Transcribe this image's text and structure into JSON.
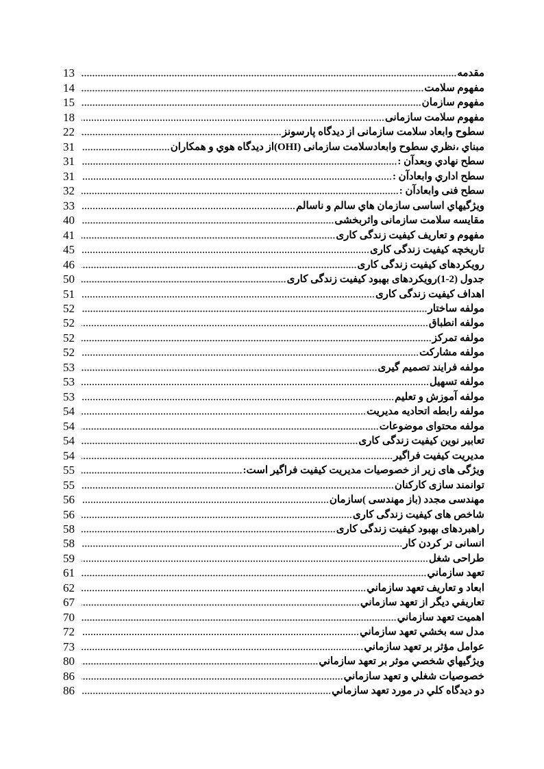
{
  "toc": {
    "entries": [
      {
        "title": "مقدمه",
        "page": "13"
      },
      {
        "title": "مفهوم سلامت",
        "page": "14"
      },
      {
        "title": "مفهوم سازمان",
        "page": "15"
      },
      {
        "title": "مفهوم سلامت سازمانی",
        "page": "18"
      },
      {
        "title": "سطوح وابعاد سلامت سازمانی از دیدگاه پارسونز",
        "page": "22"
      },
      {
        "title": "مبناي ،نظري سطوح وابعادسلامت سازمانی (OHI)از ديدگاه هوي و همكاران",
        "page": "31"
      },
      {
        "title": "سطح نهادي وبعدآن :",
        "page": "31"
      },
      {
        "title": "سطح اداري وابعادآن :",
        "page": "31"
      },
      {
        "title": "سطح فنی وابعادآن :",
        "page": "32"
      },
      {
        "title": "ويژگيهاي اساسی سازمان هاي سالم و ناسالم",
        "page": "33"
      },
      {
        "title": "مقایسه سلامت سازمانی واثربخشی",
        "page": "40"
      },
      {
        "title": "مفهوم و تعاریف کیفیت زندگی کاری",
        "page": "41"
      },
      {
        "title": "تاریخچه کیفیت زندگی کاری",
        "page": "45"
      },
      {
        "title": "رویکردهای کیفیت زندگی کاری",
        "page": "46"
      },
      {
        "title": "جدول (2-1)رویکردهای بهبود کیفیت زندگی کاری",
        "page": "50"
      },
      {
        "title": "اهداف کیفیت زندگی کاری",
        "page": "51"
      },
      {
        "title": "مولفه ساختار",
        "page": "52"
      },
      {
        "title": "مولفه انطباق",
        "page": "52"
      },
      {
        "title": "مولفه تمرکز",
        "page": "52"
      },
      {
        "title": "مولفه مشارکت",
        "page": "52"
      },
      {
        "title": "مولفه فرایند تصمیم گیری",
        "page": "53"
      },
      {
        "title": "مولفه تسهیل",
        "page": "53"
      },
      {
        "title": "مولفه آموزش و تعلیم",
        "page": "53"
      },
      {
        "title": "مولفه رابطه اتحادیه مدیریت",
        "page": "54"
      },
      {
        "title": "مولفه محتوای موضوعات",
        "page": "54"
      },
      {
        "title": "تعابیر نوین کیفیت زندگی کاری",
        "page": "54"
      },
      {
        "title": "مدیریت کیفیت فراگیر",
        "page": "54"
      },
      {
        "title": "ویژگی های زیر از خصوصیات مدیریت کیفیت فراگیر است:",
        "page": "55"
      },
      {
        "title": "توانمند سازی کارکنان",
        "page": "55"
      },
      {
        "title": "مهندسی مجدد (باز مهندسی )سازمان",
        "page": "56"
      },
      {
        "title": "شاخص های کیفیت زندگی کاری",
        "page": "56"
      },
      {
        "title": "راهبردهای بهبود کیفیت زندگی کاری",
        "page": "58"
      },
      {
        "title": "انسانی تر کردن کار",
        "page": "58"
      },
      {
        "title": "طراحی شغل",
        "page": "59"
      },
      {
        "title": "تعهد سازماني",
        "page": "61"
      },
      {
        "title": "ابعاد و تعاريف تعهد سازماني",
        "page": "62"
      },
      {
        "title": "تعاريفي ديگر از تعهد سازماني",
        "page": "67"
      },
      {
        "title": "اهميت تعهد سازماني",
        "page": "70"
      },
      {
        "title": "مدل سه بخشي تعهد سازماني",
        "page": "72"
      },
      {
        "title": "عوامل مؤثر بر تعهد سازماني",
        "page": "73"
      },
      {
        "title": "ويژگيهاي شخصي موثر بر تعهد سازماني",
        "page": "80"
      },
      {
        "title": "خصوصيات شغلي و تعهد سازماني",
        "page": "86"
      },
      {
        "title": "دو ديدگاه كلي در مورد تعهد سازماني",
        "page": "86"
      }
    ]
  }
}
